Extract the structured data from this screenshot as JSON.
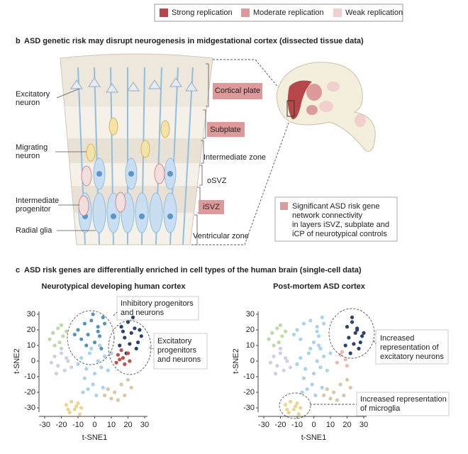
{
  "legend": [
    {
      "label": "Strong replication",
      "color": "#b5464a"
    },
    {
      "label": "Moderate replication",
      "color": "#dd9a9a"
    },
    {
      "label": "Weak replication",
      "color": "#f1cfcd"
    }
  ],
  "panel_b": {
    "letter": "b",
    "title": "ASD genetic risk may disrupt neurogenesis in midgestational cortex (dissected tissue data)",
    "cell_labels": [
      [
        "Excitatory",
        "neuron"
      ],
      [
        "Migrating",
        "neuron"
      ],
      [
        "Intermediate",
        "progenitor"
      ],
      [
        "Radial glia"
      ]
    ],
    "layers": [
      "Cortical plate",
      "Subplate",
      "Intermediate zone",
      "oSVZ",
      "iSVZ",
      "Ventricular zone"
    ],
    "note": {
      "color": "#dd9a9a",
      "lines": [
        "Significant ASD risk gene",
        "network connectivity",
        "in layers iSVZ, subplate and",
        "iCP of neurotypical controls"
      ]
    }
  },
  "panel_c": {
    "letter": "c",
    "title": "ASD risk genes are differentially enriched in cell types of the human brain (single-cell data)"
  },
  "chart_data": [
    {
      "type": "scatter",
      "title": "Neurotypical developing human cortex",
      "x_label": "t-SNE1",
      "y_label": "t-SNE2",
      "xlim": [
        -30,
        30
      ],
      "ylim": [
        -30,
        30
      ],
      "xticks": [
        -30,
        -20,
        -10,
        0,
        10,
        20,
        30
      ],
      "yticks": [
        30,
        20,
        10,
        0,
        -10,
        -20,
        -30
      ],
      "annotations": [
        {
          "lines": [
            "Inhibitory progenitors",
            "and neurons"
          ]
        },
        {
          "lines": [
            "Excitatory",
            "progenitors",
            "and neurons"
          ]
        }
      ],
      "series": [
        {
          "color": "#bcdaa6",
          "x": [
            -25,
            -22,
            -19,
            -27,
            -21,
            -17,
            -24,
            -20
          ],
          "y": [
            18,
            21,
            16,
            14,
            12,
            19,
            10,
            23
          ]
        },
        {
          "color": "#cdcfe2",
          "x": [
            -24,
            -20,
            -16,
            -22,
            -18,
            -26,
            -14,
            -20,
            -23,
            -17
          ],
          "y": [
            3,
            5,
            0,
            -3,
            -6,
            -1,
            -4,
            8,
            -8,
            2
          ]
        },
        {
          "color": "#a9d3ea",
          "x": [
            -8,
            -3,
            2,
            6,
            -5,
            0,
            4,
            -10,
            8,
            -2,
            3,
            -6,
            10,
            -1,
            -4,
            1,
            -7,
            5
          ],
          "y": [
            2,
            5,
            0,
            3,
            -5,
            -8,
            -4,
            -2,
            -6,
            8,
            10,
            -11,
            5,
            -15,
            -18,
            -22,
            -20,
            -17
          ]
        },
        {
          "color": "#5592c2",
          "x": [
            -10,
            -6,
            -2,
            2,
            5,
            -8,
            -4,
            0,
            3,
            -12,
            -1,
            4,
            -5,
            2,
            6
          ],
          "y": [
            20,
            24,
            26,
            22,
            28,
            14,
            17,
            12,
            16,
            17,
            30,
            8,
            10,
            19,
            24
          ]
        },
        {
          "color": "#2b416f",
          "x": [
            16,
            20,
            24,
            28,
            18,
            22,
            26,
            15,
            21,
            25,
            19,
            27,
            23,
            17
          ],
          "y": [
            22,
            25,
            21,
            16,
            15,
            18,
            12,
            10,
            11,
            8,
            5,
            20,
            28,
            19
          ]
        },
        {
          "color": "#c0504d",
          "x": [
            14,
            17,
            20,
            13,
            18,
            16,
            21,
            15
          ],
          "y": [
            4,
            2,
            5,
            -1,
            -2,
            7,
            0,
            1
          ]
        },
        {
          "color": "#d9c7a3",
          "x": [
            8,
            12,
            16,
            20,
            10,
            14,
            18,
            22,
            6
          ],
          "y": [
            -18,
            -20,
            -15,
            -12,
            -24,
            -25,
            -22,
            -17,
            -22
          ]
        },
        {
          "color": "#ecd58d",
          "x": [
            -17,
            -14,
            -11,
            -8,
            -15,
            -12,
            -9,
            -16,
            -10
          ],
          "y": [
            -28,
            -26,
            -29,
            -30,
            -33,
            -31,
            -34,
            -31,
            -27
          ]
        }
      ]
    },
    {
      "type": "scatter",
      "title": "Post-mortem ASD cortex",
      "x_label": "t-SNE1",
      "y_label": "t-SNE2",
      "xlim": [
        -30,
        30
      ],
      "ylim": [
        -30,
        30
      ],
      "xticks": [
        -30,
        -20,
        -10,
        0,
        10,
        20,
        30
      ],
      "yticks": [
        30,
        20,
        10,
        0,
        -10,
        -20,
        -30
      ],
      "annotations": [
        {
          "lines": [
            "Increased",
            "representation of",
            "excitatory neurons"
          ]
        },
        {
          "lines": [
            "Increased representation",
            "of microglia"
          ]
        }
      ],
      "series": [
        {
          "color": "#bcdaa6",
          "x": [
            -25,
            -22,
            -19,
            -27,
            -21,
            -17,
            -24,
            -20
          ],
          "y": [
            18,
            21,
            16,
            14,
            12,
            19,
            10,
            23
          ]
        },
        {
          "color": "#cdcfe2",
          "x": [
            -24,
            -20,
            -16,
            -22,
            -18,
            -26,
            -14,
            -20,
            -23,
            -17
          ],
          "y": [
            3,
            5,
            0,
            -3,
            -6,
            -1,
            -4,
            8,
            -8,
            2
          ]
        },
        {
          "color": "#a9d3ea",
          "x": [
            -8,
            -3,
            2,
            6,
            -5,
            0,
            4,
            -10,
            8,
            -2,
            3,
            -6,
            10,
            -1,
            -4,
            1,
            -7,
            5,
            -10,
            -6,
            -2,
            2,
            5,
            -8,
            0,
            3,
            -12,
            4,
            2,
            6
          ],
          "y": [
            2,
            5,
            0,
            3,
            -5,
            -8,
            -4,
            -2,
            -6,
            8,
            10,
            -11,
            5,
            -15,
            -18,
            -22,
            -20,
            -17,
            20,
            24,
            26,
            22,
            28,
            14,
            12,
            16,
            17,
            8,
            19,
            24
          ]
        },
        {
          "color": "#2b416f",
          "x": [
            20,
            23,
            26,
            29,
            21,
            25,
            28,
            19,
            24,
            27,
            22,
            26,
            30,
            23
          ],
          "y": [
            22,
            25,
            21,
            16,
            15,
            18,
            12,
            10,
            11,
            8,
            5,
            20,
            18,
            28
          ]
        },
        {
          "color": "#f2b8b0",
          "x": [
            16,
            19,
            14,
            17,
            20
          ],
          "y": [
            4,
            1,
            -1,
            6,
            -3
          ]
        },
        {
          "color": "#d9c7a3",
          "x": [
            8,
            12,
            16,
            20,
            10,
            14,
            18,
            22,
            6
          ],
          "y": [
            -18,
            -20,
            -15,
            -12,
            -24,
            -25,
            -22,
            -17,
            -22
          ]
        },
        {
          "color": "#ecd58d",
          "x": [
            -17,
            -14,
            -11,
            -8,
            -15,
            -12,
            -9,
            -16,
            -10
          ],
          "y": [
            -28,
            -26,
            -29,
            -30,
            -33,
            -31,
            -34,
            -31,
            -27
          ]
        }
      ]
    }
  ]
}
